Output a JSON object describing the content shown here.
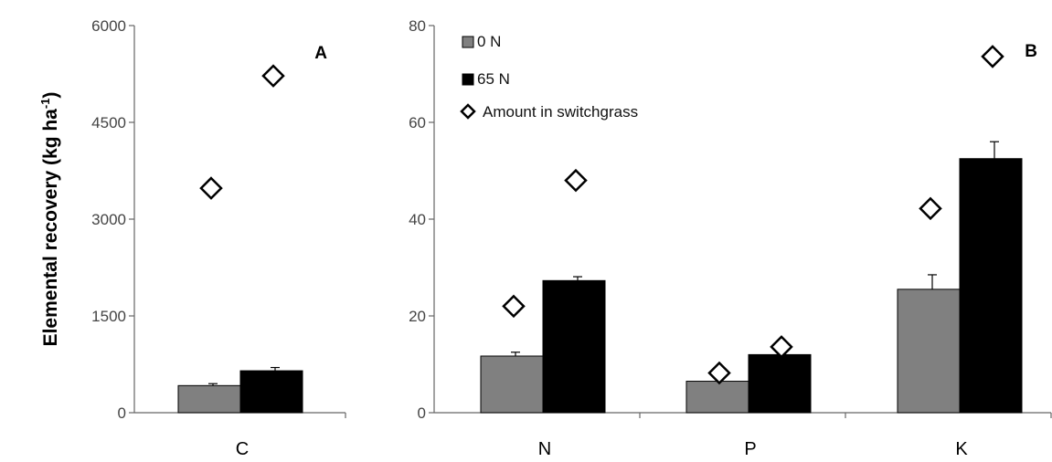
{
  "chart_data": [
    {
      "panel": "A",
      "type": "bar",
      "ylabel": "Elemental recovery (kg ha",
      "ylabel_sup": "-1",
      "ylabel_close": ")",
      "ylim": [
        0,
        6000
      ],
      "yticks": [
        0,
        1500,
        3000,
        4500,
        6000
      ],
      "categories": [
        "C"
      ],
      "series": [
        {
          "name": "0 N",
          "values": [
            420
          ],
          "errors": [
            30
          ],
          "color": "#808080"
        },
        {
          "name": "65 N",
          "values": [
            650
          ],
          "errors": [
            50
          ],
          "color": "#000000"
        }
      ],
      "switchgrass": {
        "name": "Amount in switchgrass",
        "values": [
          [
            3480,
            5220
          ]
        ]
      }
    },
    {
      "panel": "B",
      "type": "bar",
      "ylim": [
        0,
        80
      ],
      "yticks": [
        0,
        20,
        40,
        60,
        80
      ],
      "categories": [
        "N",
        "P",
        "K"
      ],
      "series": [
        {
          "name": "0 N",
          "values": [
            11.7,
            6.5,
            25.5
          ],
          "errors": [
            0.8,
            0,
            3
          ],
          "color": "#808080"
        },
        {
          "name": "65 N",
          "values": [
            27.3,
            12.0,
            52.5
          ],
          "errors": [
            0.8,
            0,
            3.5
          ],
          "color": "#000000"
        }
      ],
      "switchgrass": {
        "name": "Amount in switchgrass",
        "values": [
          [
            22.0,
            48.0
          ],
          [
            8.2,
            13.6
          ],
          [
            42.2,
            73.6
          ]
        ]
      }
    }
  ],
  "legend": {
    "items": [
      "0 N",
      "65 N",
      "Amount in switchgrass"
    ],
    "placement": "top-left of panel B"
  }
}
